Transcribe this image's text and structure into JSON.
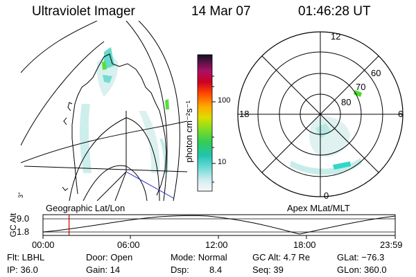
{
  "header": {
    "instrument": "Ultraviolet Imager",
    "date": "14 Mar 07",
    "time": "01:46:28 UT"
  },
  "colorbar": {
    "unit_label": "photon cm⁻²s⁻¹",
    "ticks": [
      "100",
      "10"
    ]
  },
  "polar_plot": {
    "mlt_labels": {
      "top": "12",
      "left": "18",
      "right": "6",
      "bottom": "0"
    },
    "lat_labels": [
      "60",
      "70",
      "80"
    ]
  },
  "map_panel": {
    "corner_label": "3°"
  },
  "altitude_strip": {
    "axis_label": "GC Alt",
    "y_max": "9.0",
    "y_min": "1.8",
    "left_caption": "Geographic Lat/Lon",
    "right_caption": "Apex MLat/MLT",
    "time_ticks": [
      "00:00",
      "06:00",
      "12:00",
      "18:00",
      "23:59"
    ],
    "current_time_fraction": 0.074
  },
  "info": {
    "flt": "Flt: LBHL",
    "ip": "IP: 36.0",
    "door": "Door: Open",
    "gain": "Gain: 14",
    "mode": "Mode: Normal",
    "dsp_label": "Dsp:",
    "dsp_value": "8.4",
    "gc_alt": "GC Alt: 4.7 Re",
    "seq": "Seq: 39",
    "glat": "GLat: −76.3",
    "glon": "GLon: 360.0"
  },
  "colors": {
    "red_marker": "#cc0000",
    "aurora_cyan": "#33d6c8",
    "aurora_pale": "#c8ecea",
    "aurora_green": "#44dd22"
  }
}
